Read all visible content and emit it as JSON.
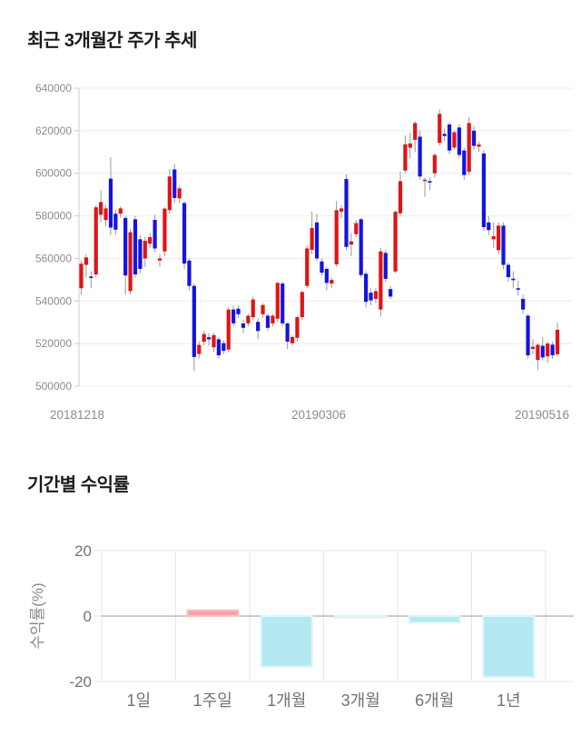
{
  "page": {
    "background": "#ffffff"
  },
  "chart_data": [
    {
      "type": "candlestick",
      "title": "최근 3개월간 주가 추세",
      "x_tick_labels": [
        "20181218",
        "20190306",
        "20190516"
      ],
      "ylim": [
        500000,
        640000
      ],
      "y_ticks": [
        640000,
        620000,
        600000,
        580000,
        560000,
        540000,
        520000,
        500000
      ],
      "grid": "horizontal",
      "legend": "none",
      "ohlc_format": [
        "open",
        "high",
        "low",
        "close"
      ],
      "colors": {
        "up": "#e01414",
        "down": "#1414e0",
        "wick": "#999999",
        "grid": "#ebebeb",
        "axis": "#cccccc",
        "tick_text": "#8c8c8c"
      },
      "candles": [
        [
          546000,
          559000,
          543000,
          557500
        ],
        [
          557000,
          562000,
          551000,
          560500
        ],
        [
          551500,
          554000,
          546000,
          551000
        ],
        [
          552500,
          585000,
          551000,
          584000
        ],
        [
          580500,
          592000,
          577000,
          586500
        ],
        [
          578000,
          585000,
          575000,
          583500
        ],
        [
          597500,
          607500,
          571000,
          574500
        ],
        [
          581000,
          583000,
          571000,
          573500
        ],
        [
          581000,
          584500,
          579000,
          583500
        ],
        [
          579000,
          580000,
          543000,
          552000
        ],
        [
          544700,
          574000,
          543000,
          572300
        ],
        [
          578400,
          580000,
          551000,
          552500
        ],
        [
          569000,
          571000,
          553000,
          555100
        ],
        [
          560000,
          570000,
          556000,
          568300
        ],
        [
          566900,
          572000,
          565000,
          570000
        ],
        [
          578100,
          580500,
          563000,
          564700
        ],
        [
          559000,
          562000,
          556000,
          560000
        ],
        [
          563300,
          584000,
          561000,
          583400
        ],
        [
          582700,
          602000,
          581000,
          598500
        ],
        [
          601800,
          604500,
          586000,
          588400
        ],
        [
          588200,
          594000,
          586000,
          592900
        ],
        [
          586000,
          587000,
          555000,
          557600
        ],
        [
          559000,
          560000,
          545000,
          547100
        ],
        [
          547100,
          548000,
          507000,
          513700
        ],
        [
          515100,
          521000,
          513000,
          519400
        ],
        [
          520900,
          526000,
          519000,
          524500
        ],
        [
          523000,
          525000,
          519000,
          522000
        ],
        [
          518300,
          525000,
          516000,
          524000
        ],
        [
          522000,
          523000,
          513000,
          514500
        ],
        [
          520200,
          521500,
          515000,
          516600
        ],
        [
          517200,
          537000,
          516000,
          536000
        ],
        [
          536000,
          538000,
          528000,
          529500
        ],
        [
          536400,
          538000,
          532000,
          533800
        ],
        [
          529500,
          531000,
          525000,
          527400
        ],
        [
          529500,
          534000,
          528000,
          533100
        ],
        [
          532400,
          542000,
          531000,
          540700
        ],
        [
          530200,
          532000,
          522000,
          525900
        ],
        [
          533800,
          539000,
          532000,
          538100
        ],
        [
          533100,
          534000,
          526000,
          527400
        ],
        [
          529500,
          534000,
          528000,
          533100
        ],
        [
          531700,
          549000,
          530000,
          548500
        ],
        [
          548200,
          549000,
          528000,
          529500
        ],
        [
          529500,
          530000,
          517500,
          520900
        ],
        [
          520200,
          524000,
          519000,
          523100
        ],
        [
          522700,
          533000,
          521000,
          532400
        ],
        [
          532400,
          545000,
          531000,
          544200
        ],
        [
          547100,
          566000,
          546000,
          564700
        ],
        [
          564000,
          582000,
          562000,
          574300
        ],
        [
          576900,
          581000,
          559000,
          560000
        ],
        [
          558600,
          560000,
          552000,
          553300
        ],
        [
          555100,
          556000,
          545000,
          548500
        ],
        [
          548200,
          551000,
          546000,
          549900
        ],
        [
          557200,
          587000,
          556000,
          582700
        ],
        [
          582000,
          585000,
          579000,
          583500
        ],
        [
          597300,
          599500,
          564000,
          565400
        ],
        [
          566500,
          572000,
          561000,
          568000
        ],
        [
          571400,
          578000,
          570000,
          576600
        ],
        [
          578400,
          579000,
          551000,
          552200
        ],
        [
          552800,
          554000,
          537000,
          539600
        ],
        [
          543900,
          546000,
          538000,
          540300
        ],
        [
          541000,
          546000,
          539000,
          544600
        ],
        [
          536000,
          565000,
          532700,
          563300
        ],
        [
          562600,
          564000,
          549000,
          550400
        ],
        [
          545600,
          547000,
          541000,
          542100
        ],
        [
          553900,
          582500,
          553000,
          581900
        ],
        [
          581200,
          600800,
          580000,
          596300
        ],
        [
          601300,
          617800,
          600000,
          613600
        ],
        [
          612000,
          619000,
          607000,
          614000
        ],
        [
          615700,
          624500,
          610000,
          623600
        ],
        [
          617200,
          620000,
          597000,
          598500
        ],
        [
          596500,
          598000,
          588900,
          597000
        ],
        [
          596300,
          598000,
          592000,
          595800
        ],
        [
          600000,
          609500,
          598000,
          608600
        ],
        [
          614300,
          630000,
          613000,
          627900
        ],
        [
          618500,
          621000,
          615000,
          617500
        ],
        [
          622900,
          624000,
          609000,
          610700
        ],
        [
          612100,
          620000,
          611000,
          619300
        ],
        [
          621500,
          623000,
          607000,
          608600
        ],
        [
          610700,
          612000,
          597000,
          599200
        ],
        [
          600700,
          626500,
          599000,
          623600
        ],
        [
          620000,
          622000,
          611000,
          612900
        ],
        [
          612500,
          615000,
          610000,
          613500
        ],
        [
          609300,
          611000,
          573000,
          574700
        ],
        [
          576900,
          580000,
          571000,
          573300
        ],
        [
          569000,
          577000,
          565000,
          570400
        ],
        [
          563900,
          577000,
          562000,
          575400
        ],
        [
          575400,
          577000,
          555000,
          557000
        ],
        [
          557000,
          558000,
          549000,
          551200
        ],
        [
          550500,
          554000,
          546000,
          549800
        ],
        [
          546000,
          549500,
          542500,
          545800
        ],
        [
          541000,
          543000,
          534000,
          536000
        ],
        [
          533100,
          534000,
          513000,
          514500
        ],
        [
          517500,
          522000,
          515000,
          518500
        ],
        [
          512300,
          520000,
          507500,
          519400
        ],
        [
          519000,
          523000,
          512000,
          513500
        ],
        [
          514000,
          521000,
          511000,
          520000
        ],
        [
          519500,
          521000,
          513000,
          514500
        ],
        [
          515000,
          530000,
          514000,
          526500
        ]
      ]
    },
    {
      "type": "bar",
      "title": "기간별 수익률",
      "ylabel": "수익률(%)",
      "categories": [
        "1일",
        "1주일",
        "1개월",
        "3개월",
        "6개월",
        "1년"
      ],
      "values": [
        0,
        1.8,
        -15.5,
        -0.5,
        -2,
        -18.6
      ],
      "ylim": [
        -20,
        20
      ],
      "y_ticks": [
        20,
        0,
        -20
      ],
      "grid": "column-separators",
      "legend": "none",
      "colors": {
        "positive": "#f9a1a6",
        "positive_border": "#f7c3c6",
        "negative": "#b4e9f2",
        "negative_border": "#dcf5f9",
        "zero_line": "#9a9a9a",
        "grid": "#e4e4e4",
        "tick_text": "#737373",
        "axis_title_text": "#8a8a8a"
      }
    }
  ]
}
